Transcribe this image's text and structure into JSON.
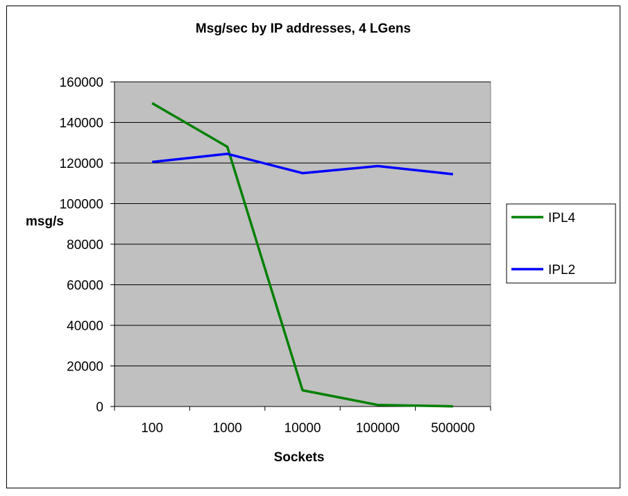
{
  "chart_data": {
    "type": "line",
    "title": "Msg/sec by IP addresses, 4 LGens",
    "xlabel": "Sockets",
    "ylabel": "msg/s",
    "categories": [
      "100",
      "1000",
      "10000",
      "100000",
      "500000"
    ],
    "ylim": [
      0,
      160000
    ],
    "yticks": [
      0,
      20000,
      40000,
      60000,
      80000,
      100000,
      120000,
      140000,
      160000
    ],
    "grid": true,
    "legend_position": "right",
    "plot_background": "#c0c0c0",
    "series": [
      {
        "name": "IPL4",
        "color": "#008000",
        "values": [
          149500,
          128000,
          8000,
          800,
          100
        ]
      },
      {
        "name": "IPL2",
        "color": "#0000ff",
        "values": [
          120500,
          124500,
          115000,
          118500,
          114500
        ]
      }
    ]
  }
}
